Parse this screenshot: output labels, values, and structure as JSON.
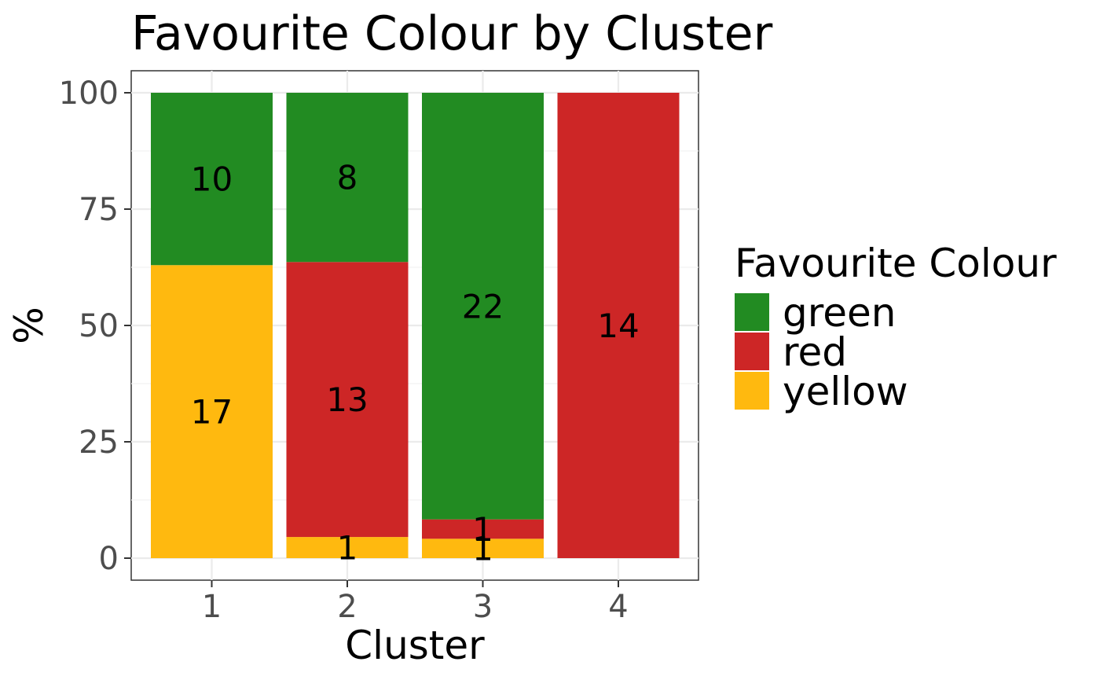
{
  "chart_data": {
    "type": "bar",
    "stacked": true,
    "title": "Favourite Colour by Cluster",
    "xlabel": "Cluster",
    "ylabel": "%",
    "categories": [
      "1",
      "2",
      "3",
      "4"
    ],
    "ylim": [
      0,
      100
    ],
    "yticks": [
      "0",
      "25",
      "50",
      "75",
      "100"
    ],
    "grid": true,
    "legend": {
      "title": "Favourite Colour",
      "placement": "right"
    },
    "series": [
      {
        "name": "green",
        "color": "#228B22",
        "values": [
          10,
          8,
          22,
          0
        ],
        "labels": [
          "10",
          "8",
          "22",
          ""
        ]
      },
      {
        "name": "red",
        "color": "#CD2626",
        "values": [
          0,
          13,
          1,
          14
        ],
        "labels": [
          "",
          "13",
          "1",
          "14"
        ]
      },
      {
        "name": "yellow",
        "color": "#FFB90F",
        "values": [
          17,
          1,
          1,
          0
        ],
        "labels": [
          "17",
          "1",
          "1",
          ""
        ]
      }
    ]
  }
}
